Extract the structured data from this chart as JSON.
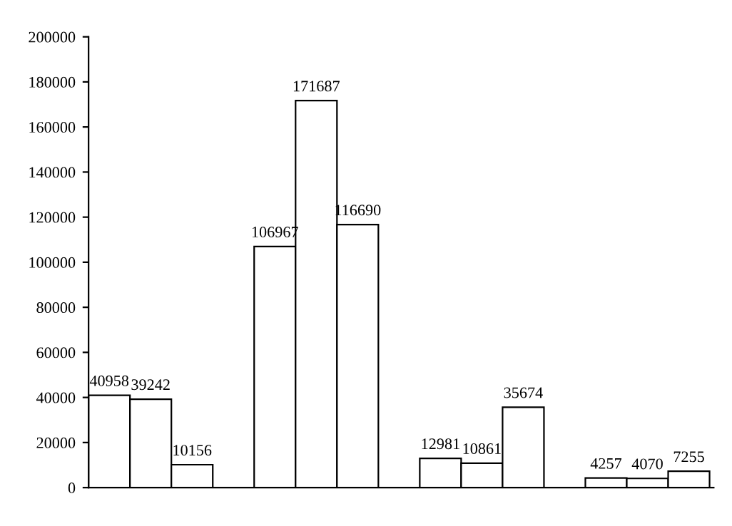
{
  "chart_data": {
    "type": "bar",
    "categories": [
      null,
      null,
      null,
      null
    ],
    "series": [
      {
        "color": "#ffffff",
        "values": [
          40958,
          106967,
          12981,
          4257
        ]
      },
      {
        "color": "#ffffff",
        "values": [
          39242,
          171687,
          10861,
          4070
        ]
      },
      {
        "color": "#ffffff",
        "values": [
          10156,
          116690,
          35674,
          7255
        ]
      }
    ],
    "ylim": [
      0,
      200000
    ],
    "yticks": [
      0,
      20000,
      40000,
      60000,
      80000,
      100000,
      120000,
      140000,
      160000,
      180000,
      200000
    ],
    "data_labels": true,
    "grid": false,
    "legend": false
  }
}
